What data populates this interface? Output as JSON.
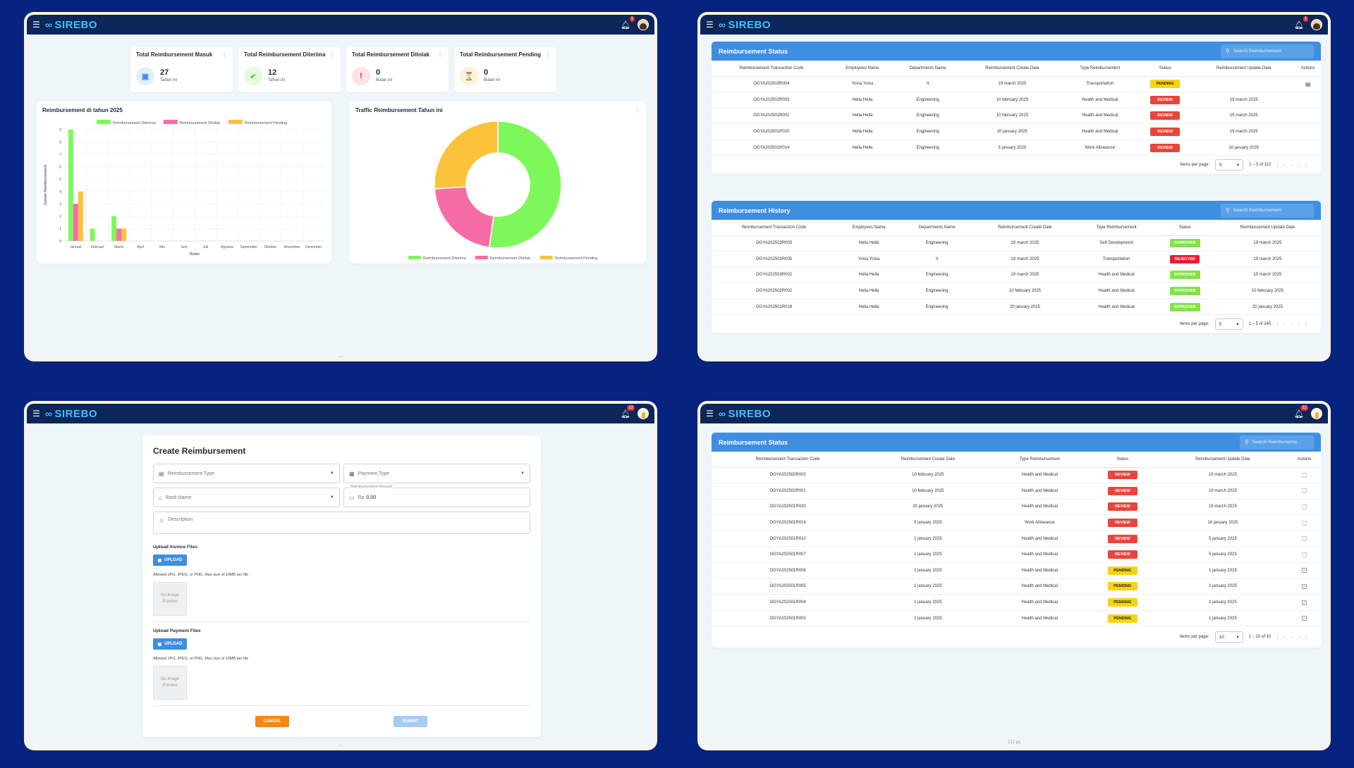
{
  "app": {
    "brand": "SIREBO",
    "notif_count": "1",
    "notif_count_2": "12"
  },
  "dashboard": {
    "cards": [
      {
        "title": "Total Reimbursement Masuk",
        "value": "27",
        "sub": "Tahun ini",
        "icon": "calendar-icon",
        "color": "#3e8ee0",
        "bg": "#e3f0fc",
        "glyph": "▣"
      },
      {
        "title": "Total Reimbursement Diterima",
        "value": "12",
        "sub": "Tahun ini",
        "icon": "check-icon",
        "color": "#5cc93b",
        "bg": "#e6f8dd",
        "glyph": "✔"
      },
      {
        "title": "Total Reimbursement Ditolak",
        "value": "0",
        "sub": "Bulan ini",
        "icon": "exclamation-icon",
        "color": "#e3202f",
        "bg": "#fde2e6",
        "glyph": "!"
      },
      {
        "title": "Total Reimbursement Pending",
        "value": "0",
        "sub": "Bulan ini",
        "icon": "hourglass-icon",
        "color": "#f0a818",
        "bg": "#fdf1d8",
        "glyph": "⌛"
      }
    ],
    "bar_title": "Reimbursement di tahun 2025",
    "donut_title": "Traffic Reimbursement Tahun ini"
  },
  "chart_data": [
    {
      "type": "bar",
      "title": "Reimbursement di tahun 2025",
      "xlabel": "Bulan",
      "ylabel": "Jumlah Reimbursement",
      "ylim": [
        0,
        9
      ],
      "yticks": [
        "0",
        "1",
        "2",
        "3",
        "4",
        "5",
        "6",
        "7",
        "8",
        "9"
      ],
      "categories": [
        "Januari",
        "Februari",
        "Maret",
        "April",
        "Mei",
        "Juni",
        "Juli",
        "Agustus",
        "September",
        "Oktober",
        "November",
        "Desember"
      ],
      "series": [
        {
          "name": "Reimbursement Diterima",
          "color": "#7ef75a",
          "values": [
            9,
            1,
            2,
            0,
            0,
            0,
            0,
            0,
            0,
            0,
            0,
            0
          ]
        },
        {
          "name": "Reimbursement Ditolak",
          "color": "#f66ca6",
          "values": [
            3,
            0,
            1,
            0,
            0,
            0,
            0,
            0,
            0,
            0,
            0,
            0
          ]
        },
        {
          "name": "Reimbursement Pending",
          "color": "#fcc33a",
          "values": [
            4,
            0,
            1,
            0,
            0,
            0,
            0,
            0,
            0,
            0,
            0,
            0
          ]
        }
      ],
      "legend": "top",
      "grid": true
    },
    {
      "type": "pie",
      "title": "Traffic Reimbursement Tahun ini",
      "labels": [
        "Reimbursement Diterima",
        "Reimbursement Ditolak",
        "Reimbursement Pending"
      ],
      "values": [
        12,
        5,
        6
      ],
      "colors": [
        "#7ef75a",
        "#f66ca6",
        "#fcc33a"
      ],
      "legend": "bottom"
    }
  ],
  "status_table": {
    "title": "Reimbursement Status",
    "search_placeholder": "Search Reimbursement",
    "columns": [
      "Reimbursement Transaction Code",
      "Employees Name",
      "Departments Name",
      "Reimbursement Create Date",
      "Type Reimbursement",
      "Status",
      "Reimbursement Update Date",
      "Actions"
    ],
    "rows": [
      [
        "OGYA202503R004",
        "Yoisa Yoisa",
        "It",
        "19 march 2025",
        "Transportation",
        "PENDING",
        ""
      ],
      [
        "OGYA202502R003",
        "Hella Hella",
        "Engineering",
        "10 february 2025",
        "Health and Medical",
        "REVIEW",
        "19 march 2025"
      ],
      [
        "OGYA202502R001",
        "Hella Hella",
        "Engineering",
        "10 february 2025",
        "Health and Medical",
        "REVIEW",
        "19 march 2025"
      ],
      [
        "OGYA202501R020",
        "Hella Hella",
        "Engineering",
        "20 january 2025",
        "Health and Medical",
        "REVIEW",
        "19 march 2025"
      ],
      [
        "OGYA202501R014",
        "Hella Hella",
        "Engineering",
        "5 january 2025",
        "Work Allowance",
        "REVIEW",
        "16 january 2025"
      ]
    ],
    "items_per_page_label": "Items per page:",
    "items_per_page": "5",
    "range": "1 – 5 of 112"
  },
  "history_table": {
    "title": "Reimbursement History",
    "search_placeholder": "Search Reimbursement",
    "columns": [
      "Reimbursement Transaction Code",
      "Employees Name",
      "Departments Name",
      "Reimbursement Create Date",
      "Type Reimbursement",
      "Status",
      "Reimbursement Update Date"
    ],
    "rows": [
      [
        "OGYA202503R003",
        "Hella Hella",
        "Engineering",
        "19 march 2025",
        "Self Development",
        "APPROVED",
        "19 march 2025"
      ],
      [
        "OGYA202503R005",
        "Yoisa Yoisa",
        "It",
        "19 march 2025",
        "Transportation",
        "REJECTED",
        "19 march 2025"
      ],
      [
        "OGYA202503R002",
        "Hella Hella",
        "Engineering",
        "19 march 2025",
        "Health and Medical",
        "APPROVED",
        "19 march 2025"
      ],
      [
        "OGYA202502R002",
        "Hella Hella",
        "Engineering",
        "10 february 2025",
        "Health and Medical",
        "APPROVED",
        "10 february 2025"
      ],
      [
        "OGYA202501R019",
        "Hella Hella",
        "Engineering",
        "20 january 2025",
        "Health and Medical",
        "APPROVED",
        "20 january 2025"
      ]
    ],
    "items_per_page_label": "Items per page:",
    "items_per_page": "5",
    "range": "1 – 5 of 245"
  },
  "create_form": {
    "title": "Create Reimbursement",
    "reimbursement_type_placeholder": "Reimbursement Type",
    "payment_type_placeholder": "Payment Type",
    "bank_name_placeholder": "Bank Name",
    "amount_label": "Reimbursement Amount",
    "amount_prefix": "Rp",
    "amount_value": "0,00",
    "description_placeholder": "Description",
    "invoice_section": "Upload Invoice Files",
    "payment_section": "Upload Payment Files",
    "upload_label": "UPLOAD",
    "allowed_hint": "Allowed JPG, JPEG, or PNG. Max size of 10MB per file",
    "no_preview": "No Image Preview",
    "cancel_label": "CANCEL",
    "submit_label": "SUBMIT"
  },
  "employee_status_table": {
    "title": "Reimbursement Status",
    "search_placeholder": "Search Reimbursema...",
    "columns": [
      "Reimbursement Transaction Code",
      "Reimbursement Create Date",
      "Type Reimbursement",
      "Status",
      "Reimbursement Update Date",
      "Actions"
    ],
    "rows": [
      [
        "OGYA202502R003",
        "10 february 2025",
        "Health and Medical",
        "REVIEW",
        "19 march 2025"
      ],
      [
        "OGYA202502R001",
        "10 february 2025",
        "Health and Medical",
        "REVIEW",
        "19 march 2025"
      ],
      [
        "OGYA202501R020",
        "20 january 2025",
        "Health and Medical",
        "REVIEW",
        "19 march 2025"
      ],
      [
        "OGYA202501R014",
        "5 january 2025",
        "Work Allowance",
        "REVIEW",
        "16 january 2025"
      ],
      [
        "OGYA202501R010",
        "1 january 2025",
        "Health and Medical",
        "REVIEW",
        "5 january 2025"
      ],
      [
        "OGYA202501R007",
        "1 january 2025",
        "Health and Medical",
        "REVIEW",
        "5 january 2025"
      ],
      [
        "OGYA202501R006",
        "1 january 2025",
        "Health and Medical",
        "PENDING",
        "1 january 2025"
      ],
      [
        "OGYA202501R005",
        "1 january 2025",
        "Health and Medical",
        "PENDING",
        "1 january 2025"
      ],
      [
        "OGYA202501R004",
        "1 january 2025",
        "Health and Medical",
        "PENDING",
        "1 january 2025"
      ],
      [
        "OGYA202501R003",
        "1 january 2025",
        "Health and Medical",
        "PENDING",
        "1 january 2025"
      ]
    ],
    "items_per_page_label": "Items per page:",
    "items_per_page": "10",
    "range": "1 – 10 of 10",
    "footer_zoom": "212 px"
  }
}
